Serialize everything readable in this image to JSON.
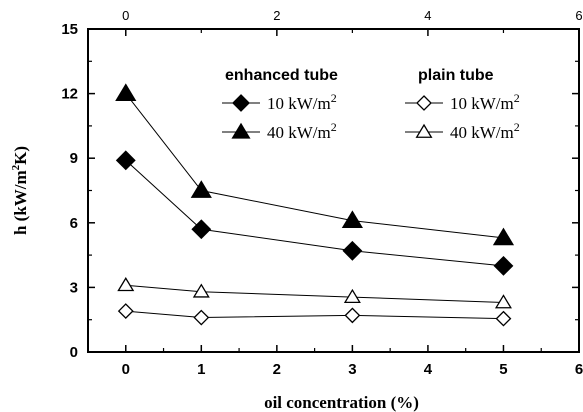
{
  "chart_data": {
    "type": "line",
    "xlabel": "oil concentration (%)",
    "ylabel": "h (kW/m",
    "ylabel_sup": "2",
    "ylabel_end": "K)",
    "xlim": [
      -0.5,
      6
    ],
    "ylim": [
      0,
      15
    ],
    "x_ticks": [
      0,
      2,
      4,
      6
    ],
    "x_tick_labels": [
      "0",
      "2",
      "4",
      "6"
    ],
    "x_ticks_top_labels": [
      "0",
      "2",
      "4",
      "6"
    ],
    "y_ticks": [
      0,
      3,
      6,
      9,
      12,
      15
    ],
    "y_tick_labels": [
      "0",
      "3",
      "6",
      "9",
      "12",
      "15"
    ],
    "x_extra_labels": [
      "1",
      "3",
      "5"
    ],
    "legend_groups": [
      {
        "heading": "enhanced tube",
        "entries": [
          {
            "series": 0,
            "text": "10 kW/m",
            "sup": "2"
          },
          {
            "series": 1,
            "text": "40 kW/m",
            "sup": "2"
          }
        ]
      },
      {
        "heading": "plain tube",
        "entries": [
          {
            "series": 2,
            "text": "10 kW/m",
            "sup": "2"
          },
          {
            "series": 3,
            "text": "40 kW/m",
            "sup": "2"
          }
        ]
      }
    ],
    "x": [
      0,
      1,
      3,
      5
    ],
    "series": [
      {
        "name": "enhanced tube 10 kW/m2",
        "marker": "diamond",
        "filled": true,
        "values": [
          8.9,
          5.7,
          4.7,
          4.0
        ]
      },
      {
        "name": "enhanced tube 40 kW/m2",
        "marker": "triangle",
        "filled": true,
        "values": [
          12.0,
          7.5,
          6.1,
          5.3
        ]
      },
      {
        "name": "plain tube 10 kW/m2",
        "marker": "diamond",
        "filled": false,
        "values": [
          1.9,
          1.6,
          1.7,
          1.55
        ]
      },
      {
        "name": "plain tube 40 kW/m2",
        "marker": "triangle",
        "filled": false,
        "values": [
          3.1,
          2.8,
          2.55,
          2.3
        ]
      }
    ]
  }
}
